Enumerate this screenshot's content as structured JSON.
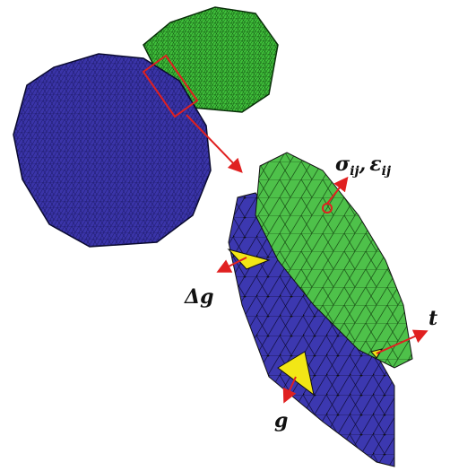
{
  "labels": {
    "stress_strain": {
      "sigma": "σ",
      "sigma_sub": "ij",
      "separator": ",",
      "epsilon": "ε",
      "epsilon_sub": "ij"
    },
    "gap_change": "Δg",
    "traction": "t",
    "gap": "g"
  }
}
